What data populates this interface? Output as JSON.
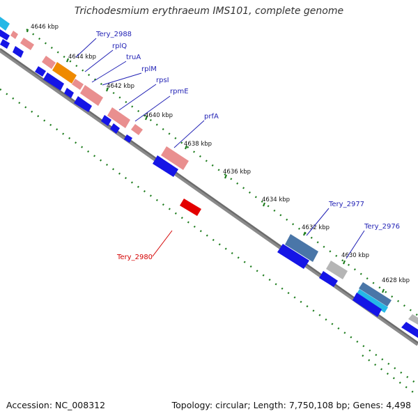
{
  "title": "Trichodesmium erythraeum IMS101, complete genome",
  "footer": {
    "accession": "Accession: NC_008312",
    "topology": "Topology: circular; Length: 7,750,108 bp; Genes: 4,498"
  },
  "kbp_ticks": [
    "4646 kbp",
    "4644 kbp",
    "4642 kbp",
    "4640 kbp",
    "4638 kbp",
    "4636 kbp",
    "4634 kbp",
    "4632 kbp",
    "4630 kbp",
    "4628 kbp"
  ],
  "gene_labels": [
    "Tery_2988",
    "rplQ",
    "truA",
    "rplM",
    "rpsI",
    "rpmE",
    "prfA",
    "Tery_2977",
    "Tery_2976"
  ],
  "highlight_label": "Tery_2980",
  "colors": {
    "backbone": "#777777",
    "tick": "#1e7d1e",
    "arrow_blue": "#1515e6",
    "gene_pink": "#e98f8f",
    "gene_orange": "#ef8a00",
    "gene_steelblue": "#4a76a8",
    "gene_cyan": "#26b8e6",
    "gene_gray": "#b5b5b5",
    "gene_red": "#e30000",
    "label_blue": "#1f1fb4",
    "label_red": "#d40000"
  }
}
